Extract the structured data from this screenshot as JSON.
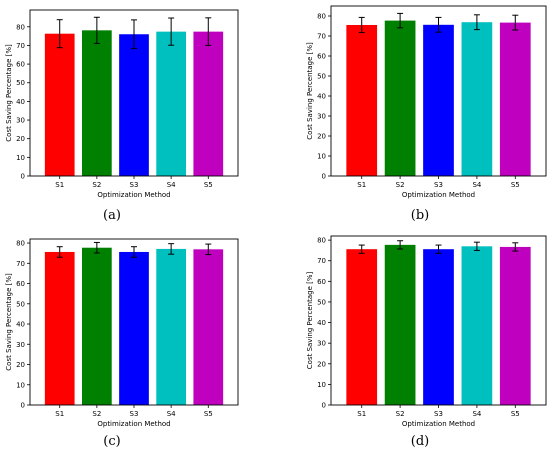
{
  "chart_data": [
    {
      "type": "bar",
      "caption": "(a)",
      "xlabel": "Optimization Method",
      "ylabel": "Cost Saving Percentage [%]",
      "categories": [
        "S1",
        "S2",
        "S3",
        "S4",
        "S5"
      ],
      "values": [
        76.3,
        78.1,
        76.0,
        77.4,
        77.4
      ],
      "errors": [
        7.5,
        7.0,
        7.7,
        7.3,
        7.4
      ],
      "colors": [
        "#ff0000",
        "#008000",
        "#0000ff",
        "#00bfbf",
        "#bf00bf"
      ],
      "ylim": [
        0,
        89
      ],
      "yticks": [
        0,
        10,
        20,
        30,
        40,
        50,
        60,
        70,
        80
      ]
    },
    {
      "type": "bar",
      "caption": "(b)",
      "xlabel": "Optimization Method",
      "ylabel": "Cost Saving Percentage [%]",
      "categories": [
        "S1",
        "S2",
        "S3",
        "S4",
        "S5"
      ],
      "values": [
        75.5,
        77.7,
        75.6,
        76.9,
        76.7
      ],
      "errors": [
        3.8,
        3.6,
        3.7,
        3.7,
        3.7
      ],
      "colors": [
        "#ff0000",
        "#008000",
        "#0000ff",
        "#00bfbf",
        "#bf00bf"
      ],
      "ylim": [
        0,
        85
      ],
      "yticks": [
        0,
        10,
        20,
        30,
        40,
        50,
        60,
        70,
        80
      ]
    },
    {
      "type": "bar",
      "caption": "(c)",
      "xlabel": "Optimization Method",
      "ylabel": "Cost Saving Percentage [%]",
      "categories": [
        "S1",
        "S2",
        "S3",
        "S4",
        "S5"
      ],
      "values": [
        75.6,
        77.7,
        75.6,
        77.1,
        76.9
      ],
      "errors": [
        2.6,
        2.6,
        2.6,
        2.6,
        2.6
      ],
      "colors": [
        "#ff0000",
        "#008000",
        "#0000ff",
        "#00bfbf",
        "#bf00bf"
      ],
      "ylim": [
        0,
        82
      ],
      "yticks": [
        0,
        10,
        20,
        30,
        40,
        50,
        60,
        70,
        80
      ]
    },
    {
      "type": "bar",
      "caption": "(d)",
      "xlabel": "Optimization Method",
      "ylabel": "Cost Saving Percentage [%]",
      "categories": [
        "S1",
        "S2",
        "S3",
        "S4",
        "S5"
      ],
      "values": [
        75.6,
        77.7,
        75.6,
        77.0,
        76.7
      ],
      "errors": [
        2.0,
        2.0,
        2.0,
        2.0,
        2.0
      ],
      "colors": [
        "#ff0000",
        "#008000",
        "#0000ff",
        "#00bfbf",
        "#bf00bf"
      ],
      "ylim": [
        0,
        82
      ],
      "yticks": [
        0,
        10,
        20,
        30,
        40,
        50,
        60,
        70,
        80
      ]
    }
  ]
}
